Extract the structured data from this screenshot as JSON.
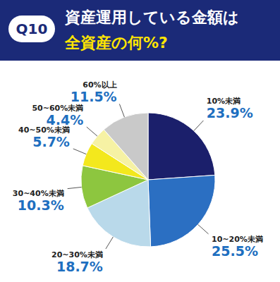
{
  "chart_data": {
    "type": "pie",
    "badge": "Q10",
    "title": [
      "資産運用している金額は",
      "全資産の何%?"
    ],
    "categories": [
      "10%未満",
      "10~20%未満",
      "20~30%未満",
      "30~40%未満",
      "40~50%未満",
      "50~60%未満",
      "60%以上"
    ],
    "values": [
      23.9,
      25.5,
      18.7,
      10.3,
      5.7,
      4.4,
      11.5
    ],
    "value_labels": [
      "23.9%",
      "25.5%",
      "18.7%",
      "10.3%",
      "5.7%",
      "4.4%",
      "11.5%"
    ],
    "colors": [
      "#1b1f6b",
      "#2b6fc2",
      "#b9d9ea",
      "#8dc63f",
      "#f3e81d",
      "#f6f2a4",
      "#c9c9c9"
    ],
    "data_labels": true
  }
}
